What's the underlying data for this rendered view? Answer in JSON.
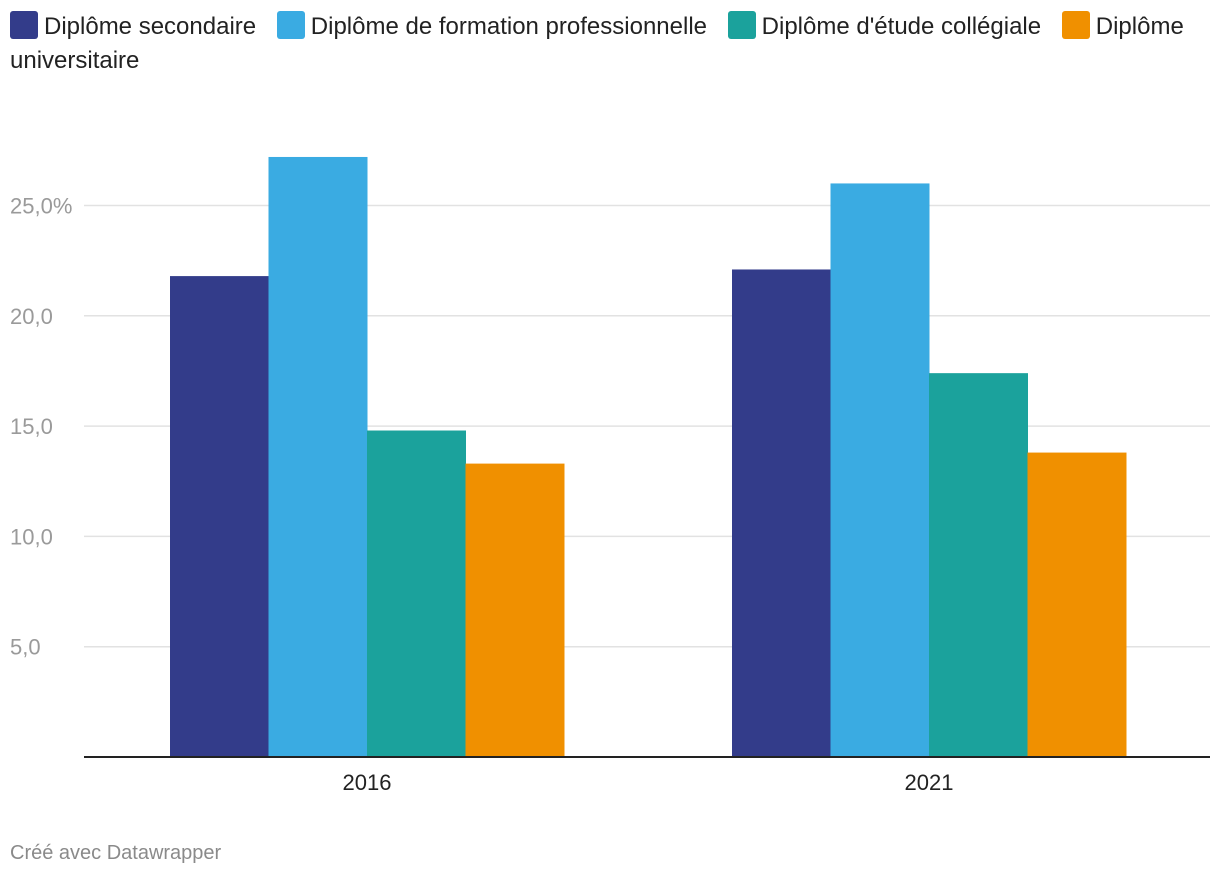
{
  "chart_data": {
    "type": "bar",
    "categories": [
      "2016",
      "2021"
    ],
    "series": [
      {
        "name": "Diplôme secondaire",
        "color": "#333c8a",
        "values": [
          21.8,
          22.1
        ]
      },
      {
        "name": "Diplôme de formation professionnelle",
        "color": "#3aabe2",
        "values": [
          27.2,
          26.0
        ]
      },
      {
        "name": "Diplôme d'étude collégiale",
        "color": "#1ba29c",
        "values": [
          14.8,
          17.4
        ]
      },
      {
        "name": "Diplôme universitaire",
        "color": "#f09000",
        "values": [
          13.3,
          13.8
        ]
      }
    ],
    "yticks": [
      5,
      10,
      15,
      20,
      25
    ],
    "ytick_labels": [
      "5,0",
      "10,0",
      "15,0",
      "20,0",
      "25,0%"
    ],
    "ylim": [
      0,
      30
    ],
    "grid": true,
    "legend_position": "top",
    "title": "",
    "xlabel": "",
    "ylabel": ""
  },
  "footer": {
    "credit": "Créé avec Datawrapper"
  }
}
